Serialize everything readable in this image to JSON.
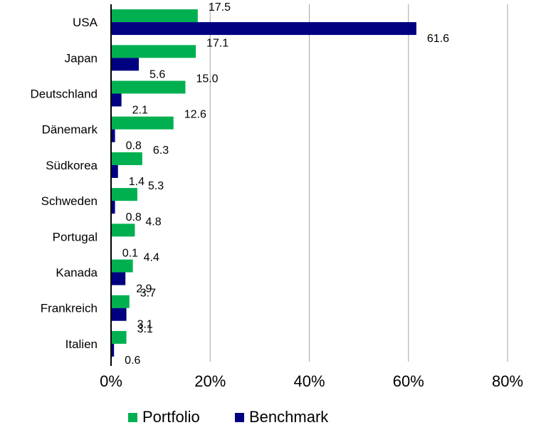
{
  "chart_data": {
    "type": "bar",
    "orientation": "horizontal",
    "categories": [
      "USA",
      "Japan",
      "Deutschland",
      "Dänemark",
      "Südkorea",
      "Schweden",
      "Portugal",
      "Kanada",
      "Frankreich",
      "Italien"
    ],
    "series": [
      {
        "name": "Portfolio",
        "color": "#00b050",
        "values": [
          17.5,
          17.1,
          15.0,
          12.6,
          6.3,
          5.3,
          4.8,
          4.4,
          3.7,
          3.1
        ]
      },
      {
        "name": "Benchmark",
        "color": "#000080",
        "values": [
          61.6,
          5.6,
          2.1,
          0.8,
          1.4,
          0.8,
          0.1,
          2.9,
          3.1,
          0.6
        ]
      }
    ],
    "xlim": [
      0,
      80
    ],
    "xticks": [
      0,
      20,
      40,
      60,
      80
    ],
    "tick_format": "{v}%",
    "grid": "vertical",
    "legend": "bottom"
  }
}
